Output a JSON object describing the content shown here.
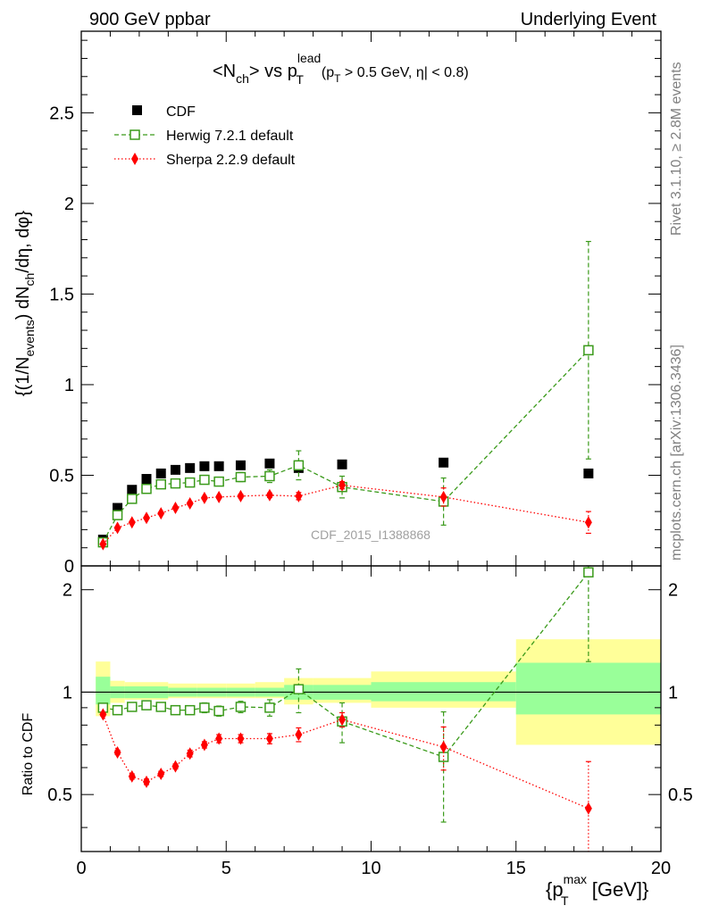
{
  "header": {
    "left": "900 GeV ppbar",
    "right": "Underlying Event"
  },
  "side_labels": {
    "rivet": "Rivet 3.1.10, ≥ 2.8M events",
    "mcplots": "mcplots.cern.ch [arXiv:1306.3436]"
  },
  "watermark": "CDF_2015_I1388868",
  "chart_data": [
    {
      "type": "scatter",
      "title": "<N_ch> vs p_T^lead (p_T > 0.5 GeV, |η| < 0.8)",
      "title_parts": {
        "main": "<N",
        "main_sub": "ch",
        "vs": "> vs p",
        "p_sup": "lead",
        "p_sub": "T",
        "cut_a": "(p",
        "cut_sub": "T",
        "cut_b": " > 0.5 GeV, η| < 0.8)"
      },
      "ylabel": "{(1/N_events) dN_ch/dη, dφ}",
      "ylabel_parts": {
        "a": "{(1/N",
        "a_sub": "events",
        "b": ") dN",
        "b_sub": "ch",
        "c": "/dη, dφ}"
      },
      "xlim": [
        0,
        20
      ],
      "ylim": [
        0,
        2.95
      ],
      "y_ticks": [
        "0",
        "0.5",
        "1",
        "1.5",
        "2",
        "2.5"
      ],
      "y_tick_values": [
        0,
        0.5,
        1,
        1.5,
        2,
        2.5
      ],
      "legend_position": "top-left",
      "series": [
        {
          "name": "CDF",
          "style": "data",
          "color": "#000000",
          "marker": "filled-square",
          "x": [
            0.75,
            1.25,
            1.75,
            2.25,
            2.75,
            3.25,
            3.75,
            4.25,
            4.75,
            5.5,
            6.5,
            7.5,
            9.0,
            12.5,
            17.5
          ],
          "y": [
            0.145,
            0.32,
            0.42,
            0.48,
            0.51,
            0.53,
            0.54,
            0.55,
            0.55,
            0.555,
            0.565,
            0.54,
            0.56,
            0.57,
            0.51
          ],
          "err": [
            0.01,
            0.01,
            0.01,
            0.01,
            0.01,
            0.01,
            0.01,
            0.01,
            0.01,
            0.01,
            0.01,
            0.01,
            0.01,
            0.01,
            0.01
          ]
        },
        {
          "name": "Herwig 7.2.1 default",
          "style": "dashed",
          "color": "#3a9a1a",
          "marker": "open-square",
          "x": [
            0.75,
            1.25,
            1.75,
            2.25,
            2.75,
            3.25,
            3.75,
            4.25,
            4.75,
            5.5,
            6.5,
            7.5,
            9.0,
            12.5,
            17.5
          ],
          "y": [
            0.13,
            0.28,
            0.37,
            0.425,
            0.45,
            0.455,
            0.46,
            0.475,
            0.465,
            0.49,
            0.495,
            0.555,
            0.435,
            0.355,
            1.19
          ],
          "err": [
            0.01,
            0.015,
            0.015,
            0.015,
            0.015,
            0.015,
            0.015,
            0.02,
            0.02,
            0.025,
            0.035,
            0.08,
            0.06,
            0.13,
            0.6
          ]
        },
        {
          "name": "Sherpa 2.2.9 default",
          "style": "dotted",
          "color": "#ff0000",
          "marker": "filled-diamond",
          "x": [
            0.75,
            1.25,
            1.75,
            2.25,
            2.75,
            3.25,
            3.75,
            4.25,
            4.75,
            5.5,
            6.5,
            7.5,
            9.0,
            12.5,
            17.5
          ],
          "y": [
            0.12,
            0.21,
            0.24,
            0.265,
            0.29,
            0.32,
            0.345,
            0.375,
            0.38,
            0.385,
            0.39,
            0.385,
            0.445,
            0.38,
            0.24
          ],
          "err": [
            0.005,
            0.005,
            0.005,
            0.005,
            0.005,
            0.005,
            0.008,
            0.008,
            0.008,
            0.01,
            0.012,
            0.02,
            0.02,
            0.05,
            0.06
          ]
        }
      ]
    },
    {
      "type": "scatter",
      "ylabel": "Ratio to CDF",
      "xlabel": "{p_T^max [GeV]}",
      "xlabel_parts": {
        "a": "{p",
        "a_sup": "max",
        "a_sub": "T",
        "b": " [GeV]}"
      },
      "xlim": [
        0,
        20
      ],
      "ylim": [
        0.34,
        2.35
      ],
      "x_ticks": [
        "0",
        "5",
        "10",
        "15",
        "20"
      ],
      "x_tick_values": [
        0,
        5,
        10,
        15,
        20
      ],
      "y_ticks": [
        "0.5",
        "1",
        "2"
      ],
      "y_tick_values": [
        0.5,
        1,
        2
      ],
      "y_scale": "log",
      "reference_line": 1,
      "uncertainty_bands": {
        "edges": [
          0.5,
          1.0,
          1.5,
          3.0,
          4.0,
          5.0,
          6.0,
          7.0,
          8.0,
          10.0,
          15.0,
          20.0
        ],
        "inner": [
          [
            0.92,
            1.11
          ],
          [
            0.96,
            1.04
          ],
          [
            0.96,
            1.04
          ],
          [
            0.97,
            1.03
          ],
          [
            0.97,
            1.03
          ],
          [
            0.97,
            1.03
          ],
          [
            0.97,
            1.03
          ],
          [
            0.95,
            1.05
          ],
          [
            0.95,
            1.05
          ],
          [
            0.94,
            1.07
          ],
          [
            0.86,
            1.22
          ]
        ],
        "outer": [
          [
            0.85,
            1.23
          ],
          [
            0.93,
            1.08
          ],
          [
            0.95,
            1.07
          ],
          [
            0.96,
            1.06
          ],
          [
            0.96,
            1.06
          ],
          [
            0.96,
            1.06
          ],
          [
            0.96,
            1.07
          ],
          [
            0.92,
            1.1
          ],
          [
            0.93,
            1.1
          ],
          [
            0.9,
            1.15
          ],
          [
            0.7,
            1.43
          ]
        ],
        "inner_color": "#99ff99",
        "outer_color": "#ffff99"
      },
      "series": [
        {
          "name": "Herwig 7.2.1 default",
          "style": "dashed",
          "color": "#3a9a1a",
          "marker": "open-square",
          "x": [
            0.75,
            1.25,
            1.75,
            2.25,
            2.75,
            3.25,
            3.75,
            4.25,
            4.75,
            5.5,
            6.5,
            7.5,
            9.0,
            12.5,
            17.5
          ],
          "y": [
            0.9,
            0.885,
            0.905,
            0.915,
            0.905,
            0.885,
            0.885,
            0.9,
            0.88,
            0.905,
            0.9,
            1.02,
            0.82,
            0.645,
            2.25
          ],
          "err": [
            0.02,
            0.02,
            0.02,
            0.02,
            0.02,
            0.02,
            0.025,
            0.03,
            0.03,
            0.035,
            0.05,
            0.15,
            0.11,
            0.23,
            1.02
          ]
        },
        {
          "name": "Sherpa 2.2.9 default",
          "style": "dotted",
          "color": "#ff0000",
          "marker": "filled-diamond",
          "x": [
            0.75,
            1.25,
            1.75,
            2.25,
            2.75,
            3.25,
            3.75,
            4.25,
            4.75,
            5.5,
            6.5,
            7.5,
            9.0,
            12.5,
            17.5
          ],
          "y": [
            0.86,
            0.665,
            0.565,
            0.545,
            0.575,
            0.605,
            0.66,
            0.7,
            0.73,
            0.73,
            0.73,
            0.75,
            0.83,
            0.69,
            0.455
          ],
          "err": [
            0.01,
            0.01,
            0.01,
            0.01,
            0.01,
            0.01,
            0.015,
            0.015,
            0.02,
            0.02,
            0.025,
            0.035,
            0.04,
            0.1,
            0.17
          ]
        }
      ]
    }
  ]
}
